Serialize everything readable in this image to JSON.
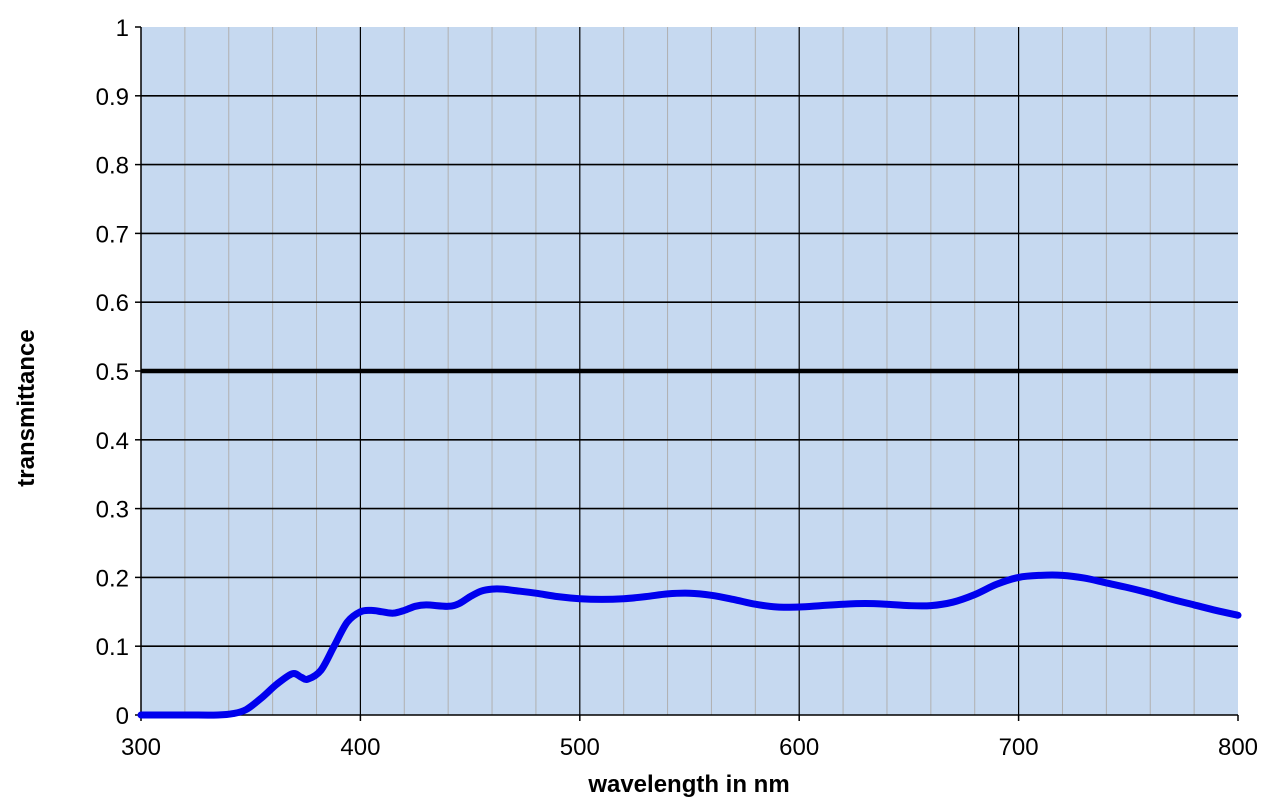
{
  "chart_data": {
    "type": "line",
    "title": "",
    "xlabel": "wavelength in nm",
    "ylabel": "transmittance",
    "xlim": [
      300,
      800
    ],
    "ylim": [
      0,
      1
    ],
    "x_ticks": [
      300,
      400,
      500,
      600,
      700,
      800
    ],
    "x_tick_labels": [
      "300",
      "400",
      "500",
      "600",
      "700",
      "800"
    ],
    "y_ticks": [
      0,
      0.1,
      0.2,
      0.3,
      0.4,
      0.5,
      0.6,
      0.7,
      0.8,
      0.9,
      1
    ],
    "y_tick_labels": [
      "0",
      "0.1",
      "0.2",
      "0.3",
      "0.4",
      "0.5",
      "0.6",
      "0.7",
      "0.8",
      "0.9",
      "1"
    ],
    "x_minor_step": 20,
    "grid": true,
    "reference_line_y": 0.5,
    "colors": {
      "plot_background": "#c6d9f0",
      "series_line": "#0000ee",
      "major_grid": "#000000",
      "minor_grid": "#b0b0b0"
    },
    "series": [
      {
        "x": [
          300,
          320,
          335,
          342,
          348,
          355,
          362,
          369,
          373,
          376,
          382,
          388,
          394,
          400,
          405,
          410,
          415,
          420,
          425,
          430,
          440,
          445,
          450,
          455,
          460,
          465,
          470,
          480,
          490,
          500,
          510,
          520,
          530,
          540,
          550,
          560,
          570,
          580,
          590,
          600,
          610,
          620,
          630,
          640,
          650,
          660,
          670,
          680,
          690,
          700,
          710,
          720,
          730,
          740,
          750,
          760,
          770,
          780,
          790,
          800
        ],
        "y": [
          0,
          0,
          0,
          0.002,
          0.008,
          0.025,
          0.045,
          0.06,
          0.055,
          0.052,
          0.065,
          0.1,
          0.135,
          0.15,
          0.152,
          0.15,
          0.148,
          0.152,
          0.158,
          0.16,
          0.158,
          0.162,
          0.172,
          0.18,
          0.183,
          0.183,
          0.181,
          0.177,
          0.172,
          0.169,
          0.168,
          0.169,
          0.172,
          0.176,
          0.177,
          0.174,
          0.168,
          0.161,
          0.157,
          0.157,
          0.159,
          0.161,
          0.162,
          0.161,
          0.159,
          0.159,
          0.164,
          0.175,
          0.19,
          0.2,
          0.203,
          0.203,
          0.199,
          0.192,
          0.185,
          0.177,
          0.168,
          0.16,
          0.152,
          0.145
        ]
      }
    ]
  }
}
